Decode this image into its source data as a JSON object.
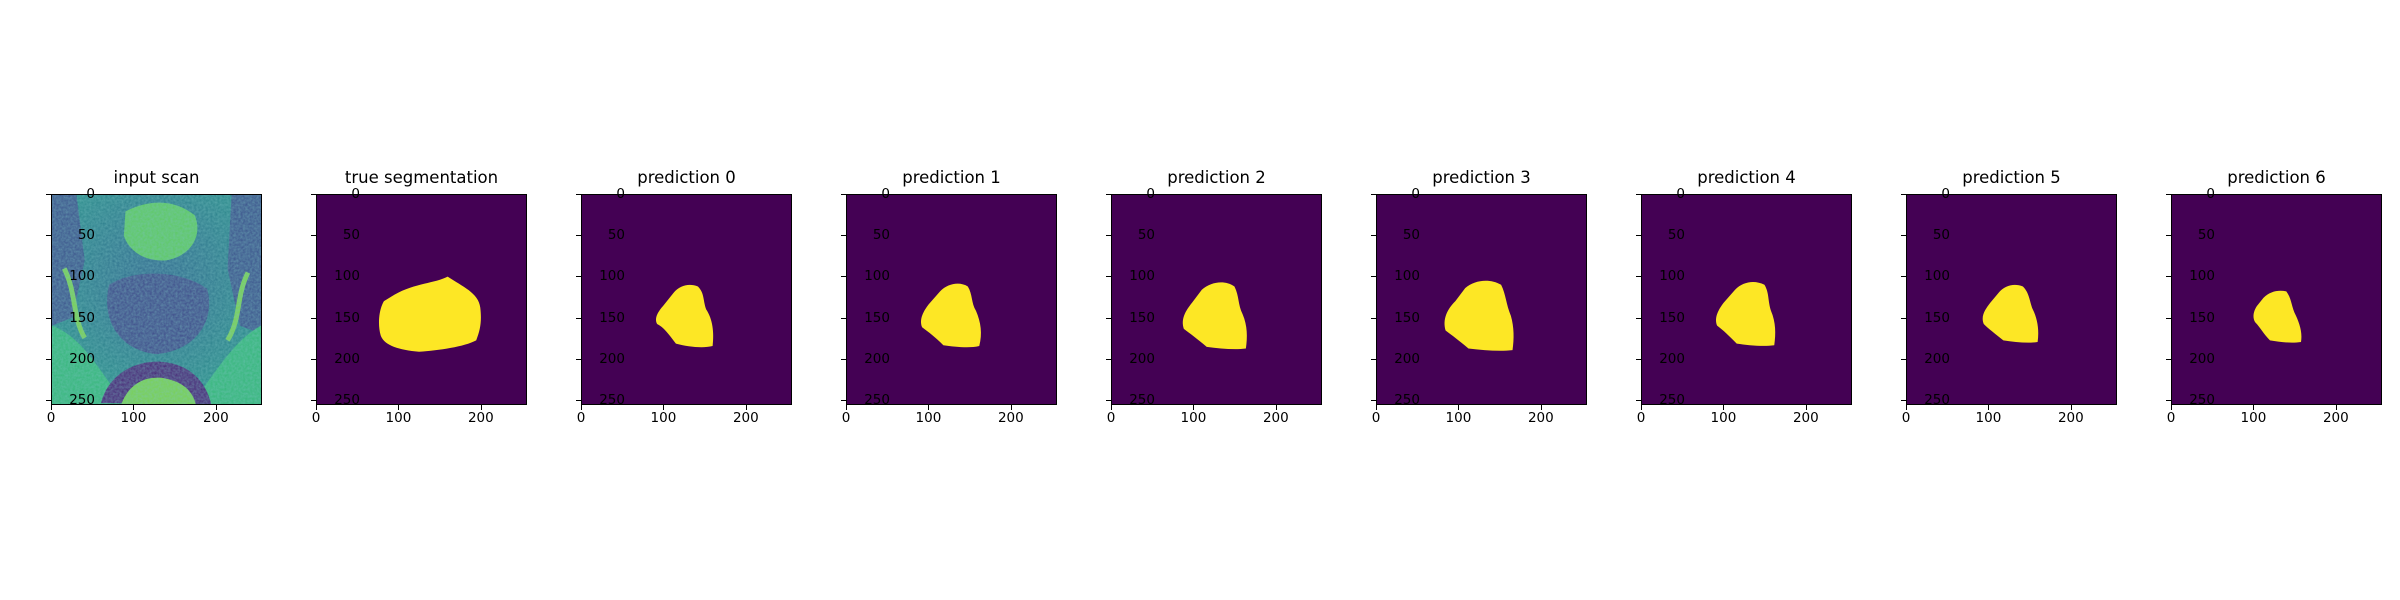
{
  "figure": {
    "panels": [
      {
        "title": "input scan"
      },
      {
        "title": "true segmentation"
      },
      {
        "title": "prediction 0"
      },
      {
        "title": "prediction 1"
      },
      {
        "title": "prediction 2"
      },
      {
        "title": "prediction 3"
      },
      {
        "title": "prediction 4"
      },
      {
        "title": "prediction 5"
      },
      {
        "title": "prediction 6"
      }
    ],
    "y_ticks": [
      "0",
      "50",
      "100",
      "150",
      "200",
      "250"
    ],
    "x_ticks": [
      "0",
      "100",
      "200"
    ],
    "colors": {
      "background": "#440154",
      "foreground": "#fde725"
    }
  }
}
